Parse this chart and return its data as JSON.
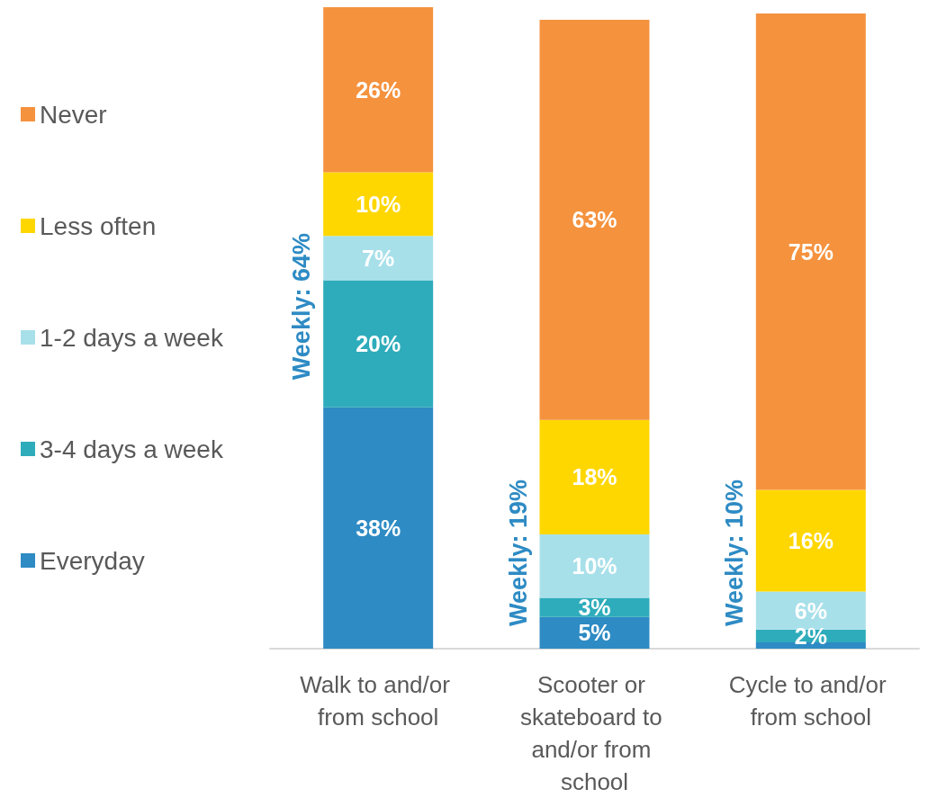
{
  "chart_data": {
    "type": "bar",
    "stacked": true,
    "legend": "left",
    "categories": [
      "Walk to and/or from school",
      "Scooter or skateboard to and/or from school",
      "Cycle to and/or from school"
    ],
    "series": [
      {
        "name": "Everyday",
        "color": "#2e8bc4",
        "values": [
          38,
          5,
          1
        ],
        "value_labels": [
          "38%",
          "5%",
          null
        ]
      },
      {
        "name": "3-4 days a week",
        "color": "#2eacbb",
        "values": [
          20,
          3,
          2
        ],
        "value_labels": [
          "20%",
          "3%",
          "2%"
        ]
      },
      {
        "name": "1-2 days a week",
        "color": "#a8e0ea",
        "values": [
          7,
          10,
          6
        ],
        "value_labels": [
          "7%",
          "10%",
          "6%"
        ]
      },
      {
        "name": "Less often",
        "color": "#ffd700",
        "values": [
          10,
          18,
          16
        ],
        "value_labels": [
          "10%",
          "18%",
          "16%"
        ]
      },
      {
        "name": "Never",
        "color": "#f5923e",
        "values": [
          26,
          63,
          75
        ],
        "value_labels": [
          "26%",
          "63%",
          "75%"
        ]
      }
    ],
    "annotations": [
      "Weekly: 64%",
      "Weekly: 19%",
      "Weekly: 10%"
    ]
  }
}
